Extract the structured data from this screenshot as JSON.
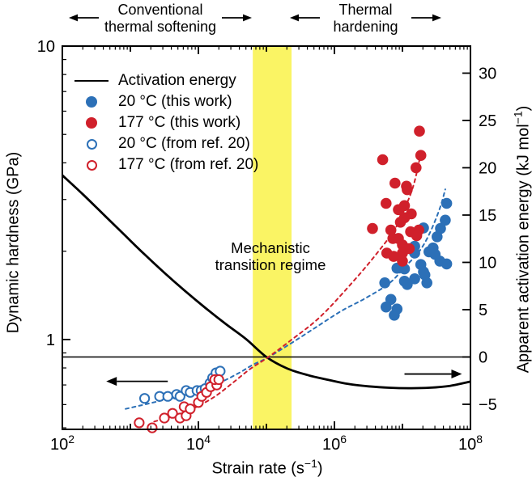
{
  "annotations": {
    "softening": {
      "line1": "Conventional",
      "line2": "thermal softening"
    },
    "hardening": {
      "line1": "Thermal",
      "line2": "hardening"
    }
  },
  "band": {
    "line1": "Mechanistic",
    "line2": "transition regime",
    "color": "#faf464",
    "x_from_log10": 4.8,
    "x_to_log10": 5.37
  },
  "colors": {
    "blue": "#2c70b7",
    "red": "#d0202b",
    "black": "#000000"
  },
  "legend": {
    "items": [
      {
        "marker": "line",
        "color": "#000000",
        "label": "Activation energy"
      },
      {
        "marker": "filled-circle",
        "color": "#2c70b7",
        "label": "20 °C (this work)"
      },
      {
        "marker": "filled-circle",
        "color": "#d0202b",
        "label": "177 °C (this work)"
      },
      {
        "marker": "open-circle",
        "color": "#2c70b7",
        "label": "20 °C (from ref. 20)"
      },
      {
        "marker": "open-circle",
        "color": "#d0202b",
        "label": "177 °C (from ref. 20)"
      }
    ]
  },
  "axes": {
    "x": {
      "title_pre": "Strain rate (s",
      "title_sup": "−1",
      "title_post": ")"
    },
    "y_left": {
      "title": "Dynamic hardness (GPa)"
    },
    "y_right": {
      "title_pre": "Apparent activation energy (kJ mol",
      "title_sup": "−1",
      "title_post": ")"
    }
  },
  "chart_data": {
    "type": "scatter",
    "title": "",
    "xlabel": "Strain rate (s⁻¹)",
    "x_axis": {
      "scale": "log",
      "min_log10": 2,
      "max_log10": 8,
      "tick_labels": [
        {
          "log10": 2,
          "base": "10",
          "exp": "2"
        },
        {
          "log10": 4,
          "base": "10",
          "exp": "4"
        },
        {
          "log10": 6,
          "base": "10",
          "exp": "6"
        },
        {
          "log10": 8,
          "base": "10",
          "exp": "8"
        }
      ]
    },
    "y_left_axis": {
      "label": "Dynamic hardness (GPa)",
      "scale": "log",
      "min": 0.494,
      "max": 10,
      "tick_labels": [
        {
          "value": 10,
          "label": "10"
        },
        {
          "value": 1,
          "label": "1"
        }
      ]
    },
    "y_right_axis": {
      "label": "Apparent activation energy (kJ mol⁻¹)",
      "scale": "linear",
      "min": -7.65,
      "max": 32.86,
      "tick_labels": [
        {
          "value": 30,
          "label": "30"
        },
        {
          "value": 25,
          "label": "25"
        },
        {
          "value": 20,
          "label": "20"
        },
        {
          "value": 15,
          "label": "15"
        },
        {
          "value": 10,
          "label": "10"
        },
        {
          "value": 5,
          "label": "5"
        },
        {
          "value": 0,
          "label": "0"
        },
        {
          "value": -5,
          "label": "−5"
        }
      ]
    },
    "zero_line_right_value": 0,
    "series": [
      {
        "name": "Activation energy",
        "type": "line",
        "axis": "right",
        "color": "#000000",
        "width": 2.8,
        "points": [
          [
            2.0,
            19.2
          ],
          [
            2.3,
            17.2
          ],
          [
            2.6,
            15.1
          ],
          [
            2.9,
            13.0
          ],
          [
            3.2,
            10.9
          ],
          [
            3.5,
            8.9
          ],
          [
            3.8,
            7.0
          ],
          [
            4.1,
            5.2
          ],
          [
            4.4,
            3.5
          ],
          [
            4.7,
            1.9
          ],
          [
            5.0,
            0.0
          ],
          [
            5.3,
            -1.2
          ],
          [
            5.6,
            -1.9
          ],
          [
            5.9,
            -2.4
          ],
          [
            6.2,
            -2.85
          ],
          [
            6.5,
            -3.1
          ],
          [
            6.8,
            -3.25
          ],
          [
            7.1,
            -3.3
          ],
          [
            7.4,
            -3.25
          ],
          [
            7.7,
            -3.05
          ],
          [
            8.0,
            -2.6
          ]
        ]
      },
      {
        "name": "20 °C trend",
        "type": "dashed-line",
        "axis": "left",
        "color": "#2c70b7",
        "width": 2,
        "points": [
          [
            2.93,
            0.58
          ],
          [
            3.4,
            0.615
          ],
          [
            3.9,
            0.655
          ],
          [
            4.3,
            0.71
          ],
          [
            4.6,
            0.77
          ],
          [
            4.8,
            0.82
          ],
          [
            5.01,
            0.865
          ],
          [
            5.3,
            0.95
          ],
          [
            5.7,
            1.09
          ],
          [
            6.1,
            1.25
          ],
          [
            6.45,
            1.38
          ],
          [
            6.8,
            1.55
          ],
          [
            7.04,
            1.77
          ],
          [
            7.25,
            2.0
          ],
          [
            7.4,
            2.3
          ],
          [
            7.55,
            2.8
          ],
          [
            7.63,
            3.25
          ]
        ]
      },
      {
        "name": "177 °C trend",
        "type": "dashed-line",
        "axis": "left",
        "color": "#d0202b",
        "width": 2,
        "points": [
          [
            3.35,
            0.525
          ],
          [
            3.8,
            0.565
          ],
          [
            4.2,
            0.63
          ],
          [
            4.5,
            0.71
          ],
          [
            4.75,
            0.79
          ],
          [
            5.01,
            0.865
          ],
          [
            5.35,
            0.99
          ],
          [
            5.8,
            1.2
          ],
          [
            6.3,
            1.6
          ],
          [
            6.65,
            2.0
          ],
          [
            6.9,
            2.4
          ],
          [
            7.05,
            2.85
          ],
          [
            7.17,
            3.4
          ],
          [
            7.27,
            4.3
          ]
        ]
      },
      {
        "name": "20 °C (this work)",
        "type": "scatter-filled",
        "axis": "left",
        "color": "#2c70b7",
        "radius": 6.8,
        "points": [
          [
            7.65,
            2.91
          ],
          [
            7.63,
            2.55
          ],
          [
            7.56,
            2.39
          ],
          [
            7.31,
            2.4
          ],
          [
            7.51,
            2.24
          ],
          [
            7.48,
            1.95
          ],
          [
            7.45,
            2.05
          ],
          [
            7.39,
            1.99
          ],
          [
            7.55,
            1.85
          ],
          [
            7.65,
            1.81
          ],
          [
            7.27,
            1.8
          ],
          [
            7.18,
            1.97
          ],
          [
            7.18,
            2.08
          ],
          [
            7.33,
            1.66
          ],
          [
            7.18,
            1.61
          ],
          [
            7.03,
            1.58
          ],
          [
            7.36,
            1.56
          ],
          [
            6.92,
            1.75
          ],
          [
            7.03,
            1.74
          ],
          [
            7.31,
            1.7
          ],
          [
            6.74,
            1.56
          ],
          [
            7.07,
            1.54
          ],
          [
            6.83,
            1.37
          ],
          [
            6.76,
            1.29
          ],
          [
            6.92,
            1.27
          ],
          [
            6.88,
            1.21
          ]
        ]
      },
      {
        "name": "177 °C (this work)",
        "type": "scatter-filled",
        "axis": "left",
        "color": "#d0202b",
        "radius": 6.8,
        "points": [
          [
            7.25,
            5.13
          ],
          [
            7.27,
            4.24
          ],
          [
            6.71,
            4.1
          ],
          [
            7.2,
            3.85
          ],
          [
            7.07,
            3.24
          ],
          [
            6.89,
            3.41
          ],
          [
            7.06,
            3.33
          ],
          [
            6.76,
            2.91
          ],
          [
            7.03,
            2.86
          ],
          [
            6.94,
            2.77
          ],
          [
            7.13,
            2.68
          ],
          [
            7.03,
            2.6
          ],
          [
            6.97,
            2.51
          ],
          [
            6.56,
            2.39
          ],
          [
            6.83,
            2.36
          ],
          [
            7.12,
            2.33
          ],
          [
            7.24,
            2.36
          ],
          [
            6.86,
            2.21
          ],
          [
            6.94,
            2.21
          ],
          [
            7.21,
            2.26
          ],
          [
            7.0,
            2.1
          ],
          [
            7.1,
            2.04
          ],
          [
            7.0,
            1.97
          ],
          [
            6.77,
            1.97
          ],
          [
            6.87,
            1.92
          ],
          [
            7.0,
            1.85
          ]
        ]
      },
      {
        "name": "20 °C (from ref. 20)",
        "type": "scatter-open",
        "axis": "left",
        "color": "#2c70b7",
        "radius": 5.6,
        "points": [
          [
            3.21,
            0.63
          ],
          [
            3.43,
            0.64
          ],
          [
            3.55,
            0.64
          ],
          [
            3.68,
            0.65
          ],
          [
            3.73,
            0.64
          ],
          [
            3.82,
            0.67
          ],
          [
            3.88,
            0.66
          ],
          [
            3.98,
            0.67
          ],
          [
            4.04,
            0.67
          ],
          [
            4.1,
            0.68
          ],
          [
            4.17,
            0.71
          ],
          [
            4.21,
            0.74
          ],
          [
            4.26,
            0.77
          ],
          [
            4.32,
            0.78
          ]
        ]
      },
      {
        "name": "177 °C (from ref. 20)",
        "type": "scatter-open",
        "axis": "left",
        "color": "#d0202b",
        "radius": 5.6,
        "points": [
          [
            3.13,
            0.52
          ],
          [
            3.32,
            0.5
          ],
          [
            3.5,
            0.54
          ],
          [
            3.62,
            0.56
          ],
          [
            3.73,
            0.54
          ],
          [
            3.79,
            0.59
          ],
          [
            3.82,
            0.55
          ],
          [
            3.88,
            0.58
          ],
          [
            4.0,
            0.61
          ],
          [
            4.05,
            0.64
          ],
          [
            4.12,
            0.66
          ],
          [
            4.18,
            0.69
          ],
          [
            4.27,
            0.7
          ],
          [
            4.24,
            0.73
          ],
          [
            4.3,
            0.73
          ]
        ]
      }
    ],
    "pointer_arrows": [
      {
        "direction": "left",
        "axis": "left",
        "y": 0.72,
        "x_from_log10": 3.55,
        "x_to_log10": 2.8
      },
      {
        "direction": "right",
        "axis": "right",
        "y": -1.8,
        "x_from_log10": 7.03,
        "x_to_log10": 7.72
      }
    ]
  }
}
